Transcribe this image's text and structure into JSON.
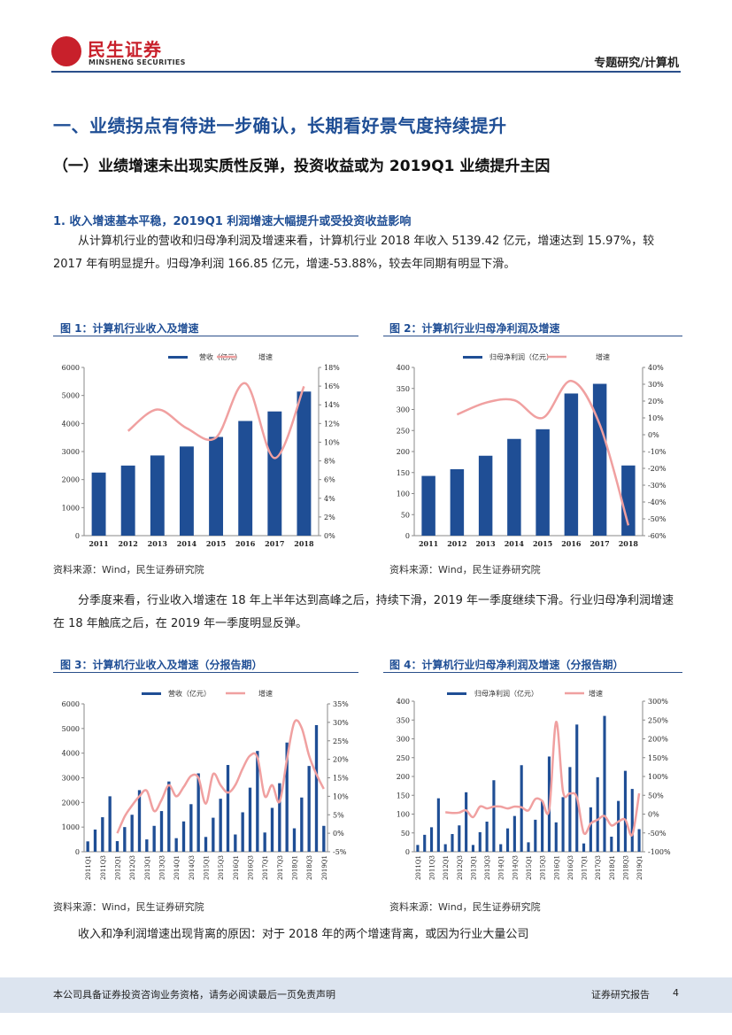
{
  "header": {
    "logo_cn": "民生证券",
    "logo_en": "MINSHENG SECURITIES",
    "section": "专题研究/计算机"
  },
  "heading1": "一、业绩拐点有待进一步确认，长期看好景气度持续提升",
  "heading2": "（一）业绩增速未出现实质性反弹，投资收益或为 2019Q1 业绩提升主因",
  "heading3": "1. 收入增速基本平稳，2019Q1 利润增速大幅提升或受投资收益影响",
  "para1": "从计算机行业的营收和归母净利润及增速来看，计算机行业 2018 年收入 5139.42 亿元，增速达到 15.97%，较 2017 年有明显提升。归母净利润 166.85 亿元，增速-53.88%，较去年同期有明显下滑。",
  "para2": "分季度来看，行业收入增速在 18 年上半年达到高峰之后，持续下滑，2019 年一季度继续下滑。行业归母净利润增速在 18 年触底之后，在 2019 年一季度明显反弹。",
  "para3": "收入和净利润增速出现背离的原因：对于 2018 年的两个增速背离，或因为行业大量公司",
  "figures": {
    "fig1_title": "图 1：计算机行业收入及增速",
    "fig2_title": "图 2：计算机行业归母净利润及增速",
    "fig3_title": "图 3：计算机行业收入及增速（分报告期）",
    "fig4_title": "图 4：计算机行业归母净利润及增速（分报告期）",
    "source": "资料来源：Wind，民生证券研究院"
  },
  "footer": {
    "disclaimer": "本公司具备证券投资咨询业务资格，请务必阅读最后一页免责声明",
    "type": "证券研究报告",
    "page": "4"
  },
  "colors": {
    "bar": "#1f4e95",
    "line": "#f0a0a0",
    "title": "#1f4e95"
  },
  "chart_data": [
    {
      "type": "bar+line",
      "title": "图 1：计算机行业收入及增速",
      "categories": [
        "2011",
        "2012",
        "2013",
        "2014",
        "2015",
        "2016",
        "2017",
        "2018"
      ],
      "series": [
        {
          "name": "营收（亿元）",
          "type": "bar",
          "axis": "left",
          "values": [
            2250,
            2500,
            2860,
            3180,
            3520,
            4090,
            4430,
            5139.42
          ]
        },
        {
          "name": "增速",
          "type": "line",
          "axis": "right",
          "values": [
            null,
            11.2,
            13.5,
            11.5,
            10.5,
            16.3,
            8.3,
            15.97
          ]
        }
      ],
      "y_left": {
        "min": 0,
        "max": 6000,
        "step": 1000,
        "ticks": [
          "0",
          "1000",
          "2000",
          "3000",
          "4000",
          "5000",
          "6000"
        ]
      },
      "y_right": {
        "min": 0,
        "max": 18,
        "step": 2,
        "ticks": [
          "0%",
          "2%",
          "4%",
          "6%",
          "8%",
          "10%",
          "12%",
          "14%",
          "16%",
          "18%"
        ]
      }
    },
    {
      "type": "bar+line",
      "title": "图 2：计算机行业归母净利润及增速",
      "categories": [
        "2011",
        "2012",
        "2013",
        "2014",
        "2015",
        "2016",
        "2017",
        "2018"
      ],
      "series": [
        {
          "name": "归母净利润（亿元）",
          "type": "bar",
          "axis": "left",
          "values": [
            142,
            158,
            190,
            230,
            253,
            338,
            361,
            166.85
          ]
        },
        {
          "name": "增速",
          "type": "line",
          "axis": "right",
          "values": [
            null,
            12,
            19,
            20.5,
            10,
            32,
            6,
            -53.88
          ]
        }
      ],
      "y_left": {
        "min": 0,
        "max": 400,
        "step": 50,
        "ticks": [
          "0",
          "50",
          "100",
          "150",
          "200",
          "250",
          "300",
          "350",
          "400"
        ]
      },
      "y_right": {
        "min": -60,
        "max": 40,
        "step": 10,
        "ticks": [
          "-60%",
          "-50%",
          "-40%",
          "-30%",
          "-20%",
          "-10%",
          "0%",
          "10%",
          "20%",
          "30%",
          "40%"
        ]
      }
    },
    {
      "type": "bar+line",
      "title": "图 3：计算机行业收入及增速（分报告期）",
      "categories": [
        "2011Q1",
        "2011Q2",
        "2011Q3",
        "2011Q4",
        "2012Q1",
        "2012Q2",
        "2012Q3",
        "2012Q4",
        "2013Q1",
        "2013Q2",
        "2013Q3",
        "2013Q4",
        "2014Q1",
        "2014Q2",
        "2014Q3",
        "2014Q4",
        "2015Q1",
        "2015Q2",
        "2015Q3",
        "2015Q4",
        "2016Q1",
        "2016Q2",
        "2016Q3",
        "2016Q4",
        "2017Q1",
        "2017Q2",
        "2017Q3",
        "2017Q4",
        "2018Q1",
        "2018Q2",
        "2018Q3",
        "2018Q4",
        "2019Q1"
      ],
      "tick_labels": [
        "2011Q1",
        "2011Q3",
        "2012Q1",
        "2012Q3",
        "2013Q1",
        "2013Q3",
        "2014Q1",
        "2014Q3",
        "2015Q1",
        "2015Q3",
        "2016Q1",
        "2016Q3",
        "2017Q1",
        "2017Q3",
        "2018Q1",
        "2018Q3",
        "2019Q1"
      ],
      "series": [
        {
          "name": "营收（亿元）",
          "type": "bar",
          "axis": "left",
          "values": [
            420,
            900,
            1400,
            2250,
            430,
            1000,
            1500,
            2500,
            500,
            1050,
            1650,
            2850,
            550,
            1230,
            1930,
            3180,
            600,
            1380,
            2150,
            3520,
            700,
            1600,
            2600,
            4090,
            780,
            1780,
            2780,
            4430,
            950,
            2200,
            3480,
            5139,
            1050
          ]
        },
        {
          "name": "增速",
          "type": "line",
          "axis": "right",
          "values": [
            null,
            null,
            null,
            null,
            0,
            4.5,
            7.5,
            10,
            11.5,
            6,
            9,
            13,
            10,
            12.5,
            15.5,
            15,
            8,
            16,
            13,
            11,
            13,
            17.5,
            21,
            20.5,
            10,
            13,
            8.5,
            20,
            30,
            28.5,
            21,
            15.97,
            12
          ]
        }
      ],
      "y_left": {
        "min": 0,
        "max": 6000,
        "step": 1000,
        "ticks": [
          "0",
          "1000",
          "2000",
          "3000",
          "4000",
          "5000",
          "6000"
        ]
      },
      "y_right": {
        "min": -5,
        "max": 35,
        "step": 5,
        "ticks": [
          "-5%",
          "0%",
          "5%",
          "10%",
          "15%",
          "20%",
          "25%",
          "30%",
          "35%"
        ]
      }
    },
    {
      "type": "bar+line",
      "title": "图 4：计算机行业归母净利润及增速（分报告期）",
      "categories": [
        "2011Q1",
        "2011Q2",
        "2011Q3",
        "2011Q4",
        "2012Q1",
        "2012Q2",
        "2012Q3",
        "2012Q4",
        "2013Q1",
        "2013Q2",
        "2013Q3",
        "2013Q4",
        "2014Q1",
        "2014Q2",
        "2014Q3",
        "2014Q4",
        "2015Q1",
        "2015Q2",
        "2015Q3",
        "2015Q4",
        "2016Q1",
        "2016Q2",
        "2016Q3",
        "2016Q4",
        "2017Q1",
        "2017Q2",
        "2017Q3",
        "2017Q4",
        "2018Q1",
        "2018Q2",
        "2018Q3",
        "2018Q4",
        "2019Q1"
      ],
      "tick_labels": [
        "2011Q1",
        "2011Q3",
        "2012Q1",
        "2012Q3",
        "2013Q1",
        "2013Q3",
        "2014Q1",
        "2014Q3",
        "2015Q1",
        "2015Q3",
        "2016Q1",
        "2016Q3",
        "2017Q1",
        "2017Q3",
        "2018Q1",
        "2018Q3",
        "2019Q1"
      ],
      "series": [
        {
          "name": "归母净利润（亿元）",
          "type": "bar",
          "axis": "left",
          "values": [
            18,
            45,
            65,
            142,
            20,
            47,
            70,
            158,
            18,
            52,
            80,
            190,
            20,
            62,
            95,
            230,
            25,
            85,
            135,
            253,
            78,
            145,
            225,
            338,
            22,
            118,
            198,
            361,
            40,
            135,
            215,
            166.85,
            60
          ]
        },
        {
          "name": "增速",
          "type": "line",
          "axis": "right",
          "values": [
            null,
            null,
            null,
            null,
            5,
            3,
            4,
            10,
            -8,
            20,
            15,
            20,
            20,
            15,
            20,
            18,
            10,
            40,
            35,
            12,
            245,
            60,
            55,
            45,
            -50,
            -25,
            -15,
            -5,
            -30,
            -20,
            -15,
            -55,
            55
          ]
        }
      ],
      "y_left": {
        "min": 0,
        "max": 400,
        "step": 50,
        "ticks": [
          "0",
          "50",
          "100",
          "150",
          "200",
          "250",
          "300",
          "350",
          "400"
        ]
      },
      "y_right": {
        "min": -100,
        "max": 300,
        "step": 50,
        "ticks": [
          "-100%",
          "-50%",
          "0%",
          "50%",
          "100%",
          "150%",
          "200%",
          "250%",
          "300%"
        ]
      }
    }
  ]
}
